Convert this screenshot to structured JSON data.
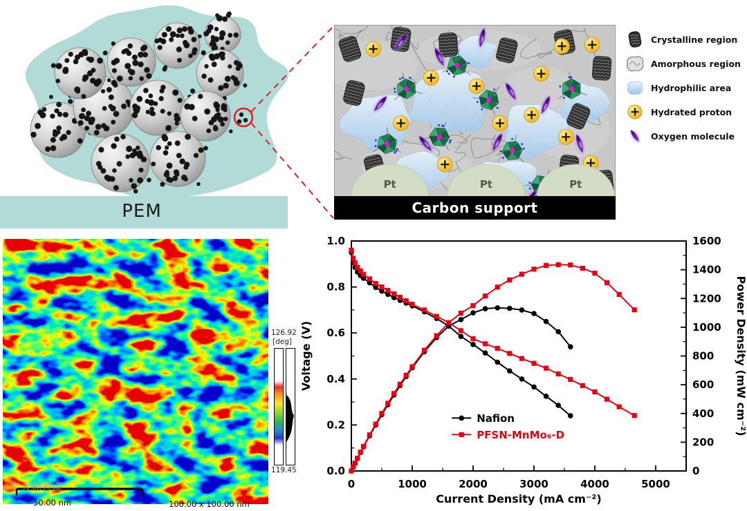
{
  "figure": {
    "background": "#ffffff"
  },
  "colors": {
    "pem_teal": "#b2dad6",
    "callout_red": "#e02020",
    "nafion_black": "#000000",
    "pfsn_red": "#e60012",
    "proton_yellow": "#f5bc1e",
    "oxygen_purple": "#7327ae",
    "hydrophilic_blue": "#a9cdee",
    "carbon_bar_black": "#000000"
  },
  "schematic": {
    "pem_label": "PEM"
  },
  "membrane_panel": {
    "pt_label": "Pt",
    "carbon_support_label": "Carbon support"
  },
  "legend": {
    "items": [
      {
        "label": "Crystalline region"
      },
      {
        "label": "Amorphous region"
      },
      {
        "label": "Hydrophilic area"
      },
      {
        "label": "Hydrated proton"
      },
      {
        "label": "Oxygen molecule"
      }
    ]
  },
  "afm": {
    "scale_max": "126.92",
    "scale_unit": "[deg]",
    "scale_min": "119.45",
    "scale_bar_label": "50.00 nm",
    "image_size_label": "100.00 x 100.00 nm"
  },
  "watermark": {
    "text": "大物咨境"
  },
  "chart_data": {
    "type": "line",
    "xlabel": "Current Density (mA cm⁻²)",
    "ylabel_left": "Voltage (V)",
    "ylabel_right": "Power Density (mW cm⁻²)",
    "xlim": [
      0,
      5500
    ],
    "xticks": [
      0,
      1000,
      2000,
      3000,
      4000,
      5000
    ],
    "ylim_left": [
      0.0,
      1.0
    ],
    "yticks_left": [
      0.0,
      0.2,
      0.4,
      0.6,
      0.8,
      1.0
    ],
    "ylim_right": [
      0,
      1600
    ],
    "yticks_right": [
      0,
      200,
      400,
      600,
      800,
      1000,
      1200,
      1400,
      1600
    ],
    "grid": false,
    "legend_position": "inside-lower-center",
    "legend": [
      {
        "label": "Nafion",
        "color": "#000000",
        "marker": "circle"
      },
      {
        "label": "PFSN-MnMo₆-D",
        "color": "#e60012",
        "marker": "square"
      }
    ],
    "series": [
      {
        "name": "Nafion voltage",
        "axis": "left",
        "color": "#000000",
        "marker": "circle",
        "points": [
          [
            0,
            0.95
          ],
          [
            30,
            0.905
          ],
          [
            60,
            0.885
          ],
          [
            100,
            0.865
          ],
          [
            150,
            0.85
          ],
          [
            200,
            0.838
          ],
          [
            300,
            0.818
          ],
          [
            400,
            0.798
          ],
          [
            500,
            0.782
          ],
          [
            600,
            0.768
          ],
          [
            700,
            0.754
          ],
          [
            800,
            0.742
          ],
          [
            900,
            0.73
          ],
          [
            1000,
            0.718
          ],
          [
            1200,
            0.692
          ],
          [
            1400,
            0.663
          ],
          [
            1600,
            0.63
          ],
          [
            1800,
            0.585
          ],
          [
            2000,
            0.55
          ],
          [
            2200,
            0.513
          ],
          [
            2400,
            0.473
          ],
          [
            2600,
            0.435
          ],
          [
            2800,
            0.4
          ],
          [
            3000,
            0.365
          ],
          [
            3200,
            0.325
          ],
          [
            3400,
            0.285
          ],
          [
            3600,
            0.24
          ]
        ]
      },
      {
        "name": "Nafion power",
        "axis": "right",
        "color": "#000000",
        "marker": "circle",
        "points": [
          [
            0,
            0
          ],
          [
            30,
            27
          ],
          [
            60,
            53
          ],
          [
            100,
            87
          ],
          [
            150,
            128
          ],
          [
            200,
            168
          ],
          [
            300,
            245
          ],
          [
            400,
            319
          ],
          [
            500,
            391
          ],
          [
            600,
            461
          ],
          [
            700,
            528
          ],
          [
            800,
            594
          ],
          [
            900,
            657
          ],
          [
            1000,
            718
          ],
          [
            1200,
            830
          ],
          [
            1400,
            928
          ],
          [
            1600,
            1008
          ],
          [
            1800,
            1053
          ],
          [
            2000,
            1100
          ],
          [
            2200,
            1129
          ],
          [
            2400,
            1135
          ],
          [
            2600,
            1131
          ],
          [
            2800,
            1120
          ],
          [
            3000,
            1095
          ],
          [
            3200,
            1040
          ],
          [
            3400,
            969
          ],
          [
            3600,
            864
          ]
        ]
      },
      {
        "name": "PFSN-MnMo6-D voltage",
        "axis": "left",
        "color": "#e60012",
        "marker": "square",
        "points": [
          [
            0,
            0.96
          ],
          [
            30,
            0.925
          ],
          [
            60,
            0.905
          ],
          [
            100,
            0.885
          ],
          [
            150,
            0.87
          ],
          [
            200,
            0.855
          ],
          [
            300,
            0.835
          ],
          [
            400,
            0.815
          ],
          [
            500,
            0.8
          ],
          [
            600,
            0.785
          ],
          [
            700,
            0.77
          ],
          [
            800,
            0.755
          ],
          [
            900,
            0.74
          ],
          [
            1000,
            0.725
          ],
          [
            1200,
            0.7
          ],
          [
            1400,
            0.672
          ],
          [
            1600,
            0.645
          ],
          [
            1800,
            0.61
          ],
          [
            2000,
            0.575
          ],
          [
            2200,
            0.553
          ],
          [
            2400,
            0.533
          ],
          [
            2600,
            0.511
          ],
          [
            2800,
            0.489
          ],
          [
            3000,
            0.468
          ],
          [
            3200,
            0.447
          ],
          [
            3400,
            0.422
          ],
          [
            3600,
            0.398
          ],
          [
            3800,
            0.371
          ],
          [
            4000,
            0.344
          ],
          [
            4200,
            0.312
          ],
          [
            4400,
            0.279
          ],
          [
            4650,
            0.241
          ]
        ]
      },
      {
        "name": "PFSN-MnMo6-D power",
        "axis": "right",
        "color": "#e60012",
        "marker": "square",
        "points": [
          [
            0,
            0
          ],
          [
            30,
            28
          ],
          [
            60,
            54
          ],
          [
            100,
            89
          ],
          [
            150,
            131
          ],
          [
            200,
            171
          ],
          [
            300,
            251
          ],
          [
            400,
            326
          ],
          [
            500,
            400
          ],
          [
            600,
            471
          ],
          [
            700,
            539
          ],
          [
            800,
            604
          ],
          [
            900,
            666
          ],
          [
            1000,
            725
          ],
          [
            1200,
            840
          ],
          [
            1400,
            941
          ],
          [
            1600,
            1032
          ],
          [
            1800,
            1098
          ],
          [
            2000,
            1150
          ],
          [
            2200,
            1217
          ],
          [
            2400,
            1279
          ],
          [
            2600,
            1329
          ],
          [
            2800,
            1369
          ],
          [
            3000,
            1404
          ],
          [
            3200,
            1430
          ],
          [
            3400,
            1435
          ],
          [
            3600,
            1433
          ],
          [
            3800,
            1410
          ],
          [
            4000,
            1376
          ],
          [
            4200,
            1310
          ],
          [
            4400,
            1228
          ],
          [
            4650,
            1121
          ]
        ]
      }
    ]
  }
}
